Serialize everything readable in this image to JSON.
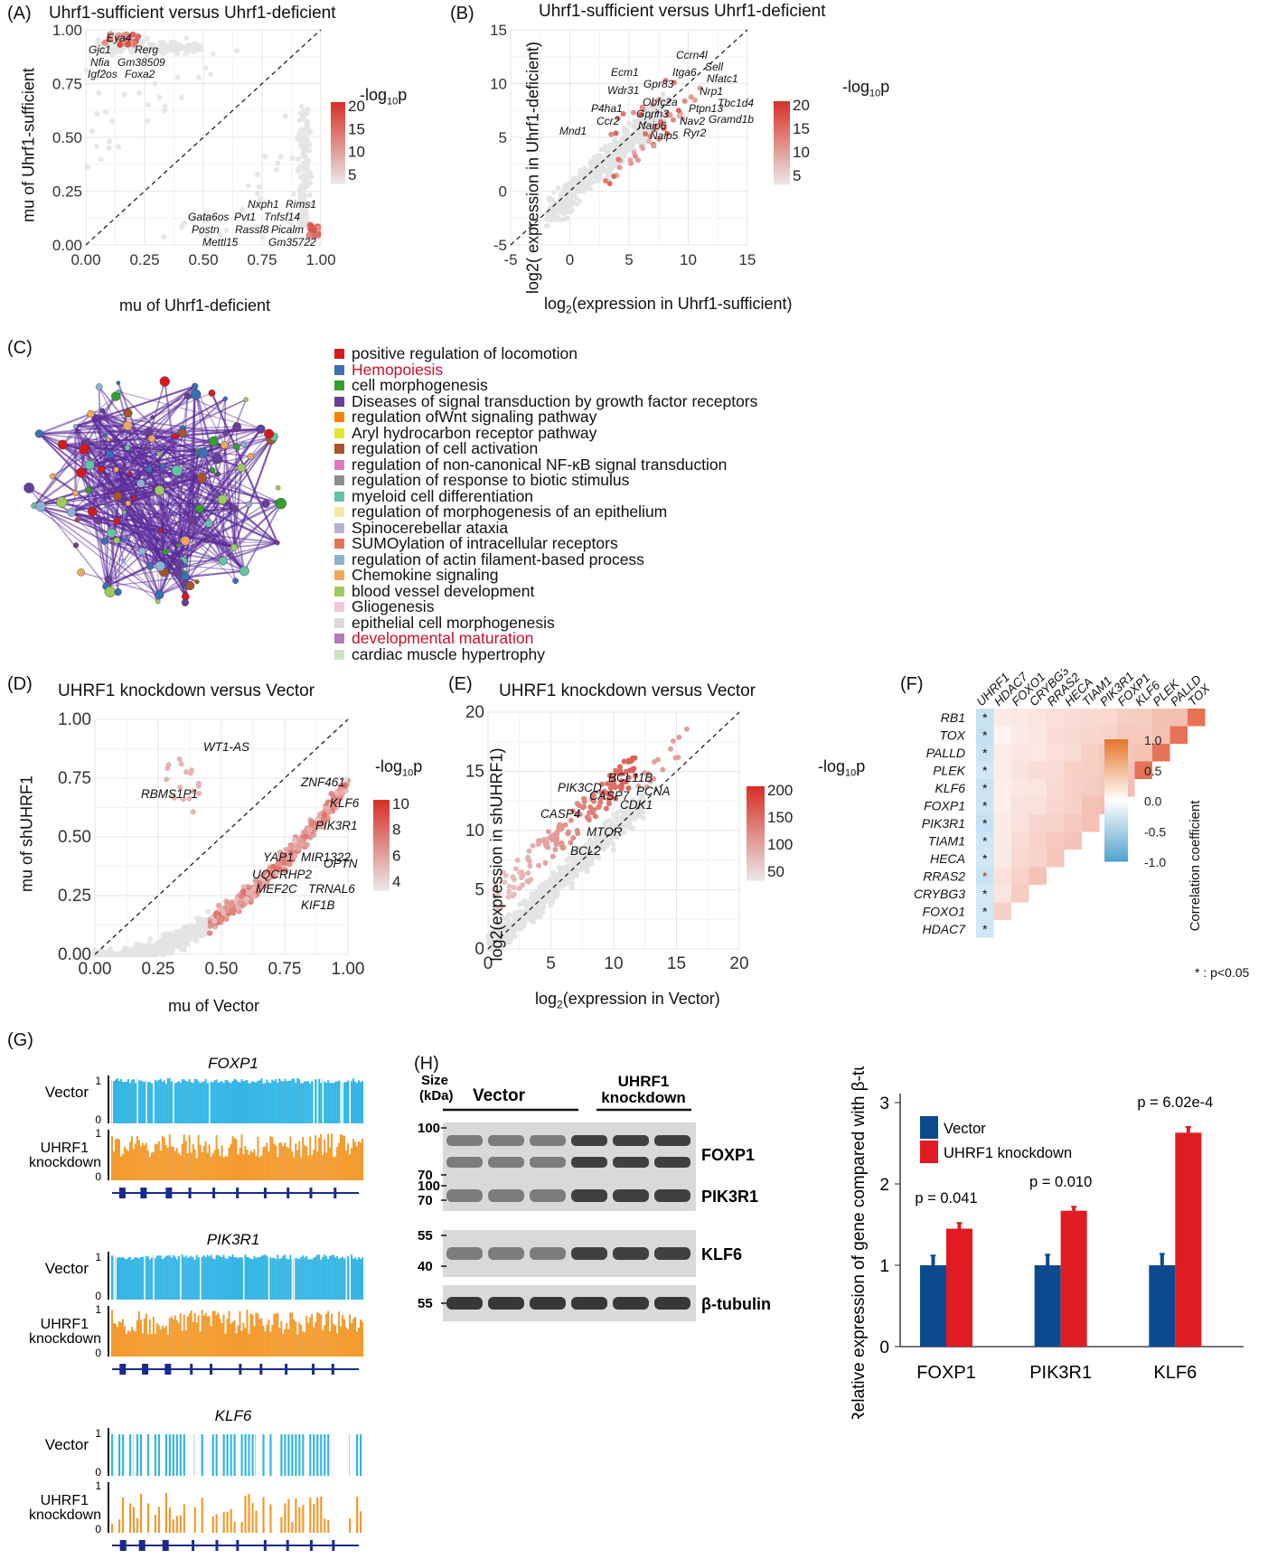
{
  "panelA": {
    "label": "(A)",
    "title": "Uhrf1-sufficient versus Uhrf1-deficient",
    "xlabel": "mu of Uhrf1-deficient",
    "ylabel": "mu of Uhrf1-sufficient",
    "legend_title": "-log",
    "legend_sub": "10",
    "legend_suffix": "p",
    "legend_ticks": [
      "20",
      "15",
      "10",
      "5"
    ],
    "xticks": [
      "0.00",
      "0.25",
      "0.50",
      "0.75",
      "1.00"
    ],
    "yticks": [
      "0.00",
      "0.25",
      "0.50",
      "0.75",
      "1.00"
    ],
    "genes_top": [
      "Eya4",
      "Gjc1",
      "Rerg",
      "Nfia",
      "Gm38509",
      "Igf2os",
      "Foxa2"
    ],
    "genes_bottom": [
      "Nxph1",
      "Rims1",
      "Gata6os",
      "Pvt1",
      "Tnfsf14",
      "Postn",
      "Rassf8",
      "Picalm",
      "Mettl15",
      "Gm35722"
    ]
  },
  "panelB": {
    "label": "(B)",
    "title": "Uhrf1-sufficient versus Uhrf1-deficient",
    "xlabel_pre": "log",
    "xlabel_sub": "2",
    "xlabel_post": "(expression in Uhrf1-sufficient)",
    "ylabel": "log2( expression in Uhrf1-deficient)",
    "legend_title": "-log",
    "legend_sub": "10",
    "legend_suffix": "p",
    "legend_ticks": [
      "20",
      "15",
      "10",
      "5"
    ],
    "xticks": [
      "-5",
      "0",
      "5",
      "10",
      "15"
    ],
    "yticks": [
      "-5",
      "0",
      "5",
      "10",
      "15"
    ],
    "genes": [
      "Ccrn4l",
      "Ecm1",
      "Itga6",
      "Sell",
      "Gpr83",
      "Nfatc1",
      "Wdr31",
      "Nrp1",
      "Obfc2a",
      "Tbc1d4",
      "P4ha1",
      "Gprin3",
      "Ptpn13",
      "Ccr2",
      "Naip6",
      "Nav2",
      "Gramd1b",
      "Mnd1",
      "Naip5",
      "Ryr2"
    ]
  },
  "panelC": {
    "label": "(C)",
    "terms": [
      {
        "text": "positive regulation of locomotion",
        "color": "#d7191c",
        "highlight": false
      },
      {
        "text": "Hemopoiesis",
        "color": "#3b6fb6",
        "highlight": true
      },
      {
        "text": "cell morphogenesis",
        "color": "#33a02c",
        "highlight": false
      },
      {
        "text": "Diseases of signal transduction by growth factor receptors",
        "color": "#6a3d9a",
        "highlight": false
      },
      {
        "text": "regulation ofWnt signaling pathway",
        "color": "#ff7f00",
        "highlight": false
      },
      {
        "text": "Aryl hydrocarbon receptor pathway",
        "color": "#e5e52a",
        "highlight": false
      },
      {
        "text": "regulation of cell activation",
        "color": "#a65628",
        "highlight": false
      },
      {
        "text": "regulation of non-canonical NF-κB signal transduction",
        "color": "#e377c2",
        "highlight": false
      },
      {
        "text": "regulation of response to biotic stimulus",
        "color": "#8c8c8c",
        "highlight": false
      },
      {
        "text": "myeloid cell differentiation",
        "color": "#66c2a5",
        "highlight": false
      },
      {
        "text": "regulation of morphogenesis of an epithelium",
        "color": "#f6e8a6",
        "highlight": false
      },
      {
        "text": "Spinocerebellar ataxia",
        "color": "#bcaed6",
        "highlight": false
      },
      {
        "text": "SUMOylation of intracellular receptors",
        "color": "#e5735a",
        "highlight": false
      },
      {
        "text": "regulation of actin filament-based process",
        "color": "#8fb1d6",
        "highlight": false
      },
      {
        "text": "Chemokine signaling",
        "color": "#f0a95a",
        "highlight": false
      },
      {
        "text": "blood vessel development",
        "color": "#9ccd5c",
        "highlight": false
      },
      {
        "text": "Gliogenesis",
        "color": "#f7c3dc",
        "highlight": false
      },
      {
        "text": "epithelial cell morphogenesis",
        "color": "#d9d9d9",
        "highlight": false
      },
      {
        "text": "developmental maturation",
        "color": "#b57bb8",
        "highlight": true
      },
      {
        "text": "cardiac muscle hypertrophy",
        "color": "#c8e6c2",
        "highlight": false
      }
    ]
  },
  "panelD": {
    "label": "(D)",
    "title": "UHRF1 knockdown versus Vector",
    "xlabel": "mu of Vector",
    "ylabel": "mu of shUHRF1",
    "legend_title": "-log",
    "legend_sub": "10",
    "legend_suffix": "p",
    "legend_ticks": [
      "10",
      "8",
      "6",
      "4"
    ],
    "xticks": [
      "0.00",
      "0.25",
      "0.50",
      "0.75",
      "1.00"
    ],
    "yticks": [
      "0.00",
      "0.25",
      "0.50",
      "0.75",
      "1.00"
    ],
    "genes": [
      "WT1-AS",
      "RBMS1P1",
      "ZNF461",
      "KLF6",
      "PIK3R1",
      "YAP1",
      "MIR1322",
      "UQCRHP2",
      "OPTN",
      "MEF2C",
      "TRNAL6",
      "KIF1B"
    ]
  },
  "panelE": {
    "label": "(E)",
    "title": "UHRF1 knockdown versus Vector",
    "xlabel_pre": "log",
    "xlabel_sub": "2",
    "xlabel_post": "(expression in Vector)",
    "ylabel": "log2(expression in shUHRF1)",
    "legend_title": "-log",
    "legend_sub": "10",
    "legend_suffix": "p",
    "legend_ticks": [
      "200",
      "150",
      "100",
      "50"
    ],
    "xticks": [
      "0",
      "5",
      "10",
      "15",
      "20"
    ],
    "yticks": [
      "0",
      "5",
      "10",
      "15",
      "20"
    ],
    "genes": [
      "BCL11B",
      "PIK3CD",
      "PCNA",
      "CASP7",
      "CDK1",
      "CASP4",
      "MTOR",
      "BCL2"
    ]
  },
  "panelF": {
    "label": "(F)",
    "genes_top": [
      "UHRF1",
      "HDAC7",
      "FOXO1",
      "CRYBG3",
      "RRAS2",
      "HECA",
      "TIAM1",
      "PIK3R1",
      "FOXP1",
      "KLF6",
      "PLEK",
      "PALLD",
      "TOX"
    ],
    "genes_left": [
      "RB1",
      "TOX",
      "PALLD",
      "PLEK",
      "KLF6",
      "FOXP1",
      "PIK3R1",
      "TIAM1",
      "HECA",
      "RRAS2",
      "CRYBG3",
      "FOXO1",
      "HDAC7"
    ],
    "legend_title": "Correlation coefficient",
    "legend_ticks": [
      "1.0",
      "0.5",
      "0.0",
      "-0.5",
      "-1.0"
    ],
    "sig_mark": "*",
    "footnote": "* : p<0.05"
  },
  "panelG": {
    "label": "(G)",
    "tracks": [
      {
        "gene": "FOXP1",
        "vector": "Vector",
        "kd_line1": "UHRF1",
        "kd_line2": "knockdown",
        "scale_max": "1",
        "scale_min": "0"
      },
      {
        "gene": "PIK3R1",
        "vector": "Vector",
        "kd_line1": "UHRF1",
        "kd_line2": "knockdown",
        "scale_max": "1",
        "scale_min": "0"
      },
      {
        "gene": "KLF6",
        "vector": "Vector",
        "kd_line1": "UHRF1",
        "kd_line2": "knockdown",
        "scale_max": "1",
        "scale_min": "0"
      }
    ]
  },
  "panelH": {
    "label": "(H)",
    "size_label": "Size",
    "kda_label": "(kDa)",
    "group1": "Vector",
    "group2_line1": "UHRF1",
    "group2_line2": "knockdown",
    "blots": [
      {
        "name": "FOXP1",
        "markers": [
          "100",
          "70"
        ]
      },
      {
        "name": "PIK3R1",
        "markers": [
          "100",
          "70"
        ]
      },
      {
        "name": "KLF6",
        "markers": [
          "55",
          "40"
        ]
      },
      {
        "name": "β-tubulin",
        "markers": [
          "55"
        ]
      }
    ]
  },
  "chart_data": {
    "type": "bar",
    "title": "",
    "categories": [
      "FOXP1",
      "PIK3R1",
      "KLF6"
    ],
    "series": [
      {
        "name": "Vector",
        "color": "#0b4a8f",
        "values": [
          1.0,
          1.0,
          1.0
        ],
        "errors": [
          0.12,
          0.13,
          0.14
        ]
      },
      {
        "name": "UHRF1 knockdown",
        "color": "#e01b22",
        "values": [
          1.45,
          1.67,
          2.63
        ],
        "errors": [
          0.07,
          0.05,
          0.07
        ]
      }
    ],
    "pvalues": [
      "p = 0.041",
      "p = 0.010",
      "p = 6.02e-4"
    ],
    "xlabel": "",
    "ylabel": "Relative expression of gene compared with β-tubulin",
    "yticks": [
      "0",
      "1",
      "2",
      "3"
    ],
    "ylim": [
      0,
      3
    ],
    "legend_position": "top-left"
  }
}
